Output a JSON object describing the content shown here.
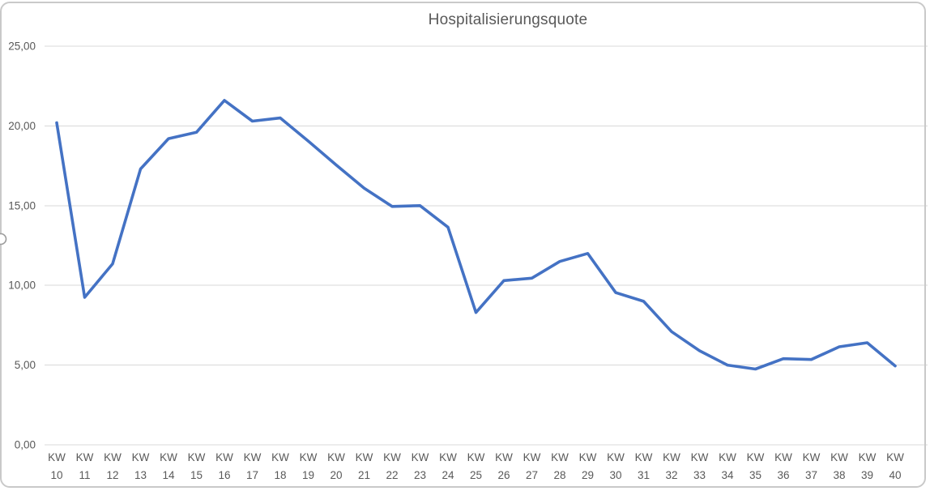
{
  "chart_title": "Hospitalisierungsquote",
  "colors": {
    "series_line": "#4472C4",
    "gridline": "#D9D9D9",
    "axis_text": "#595959",
    "frame_border": "#C9C9C9",
    "selection_handle_stroke": "#9B9B9B"
  },
  "chart_data": {
    "type": "line",
    "title": "Hospitalisierungsquote",
    "xlabel": "",
    "ylabel": "",
    "ylim": [
      0,
      25
    ],
    "grid": "horizontal",
    "legend": "none",
    "category_prefix": "KW",
    "categories": [
      "10",
      "11",
      "12",
      "13",
      "14",
      "15",
      "16",
      "17",
      "18",
      "19",
      "20",
      "21",
      "22",
      "23",
      "24",
      "25",
      "26",
      "27",
      "28",
      "29",
      "30",
      "31",
      "32",
      "33",
      "34",
      "35",
      "36",
      "37",
      "38",
      "39",
      "40"
    ],
    "values": [
      20.2,
      9.25,
      11.35,
      17.3,
      19.2,
      19.6,
      21.6,
      20.3,
      20.5,
      19.05,
      17.55,
      16.1,
      14.95,
      15.0,
      13.65,
      8.3,
      10.3,
      10.45,
      11.5,
      12.0,
      9.55,
      9.0,
      7.1,
      5.9,
      5.0,
      4.75,
      5.4,
      5.35,
      6.15,
      6.4,
      4.95
    ],
    "y_ticks": {
      "labels": [
        "0,00",
        "5,00",
        "10,00",
        "15,00",
        "20,00",
        "25,00"
      ],
      "values": [
        0,
        5,
        10,
        15,
        20,
        25
      ]
    }
  }
}
